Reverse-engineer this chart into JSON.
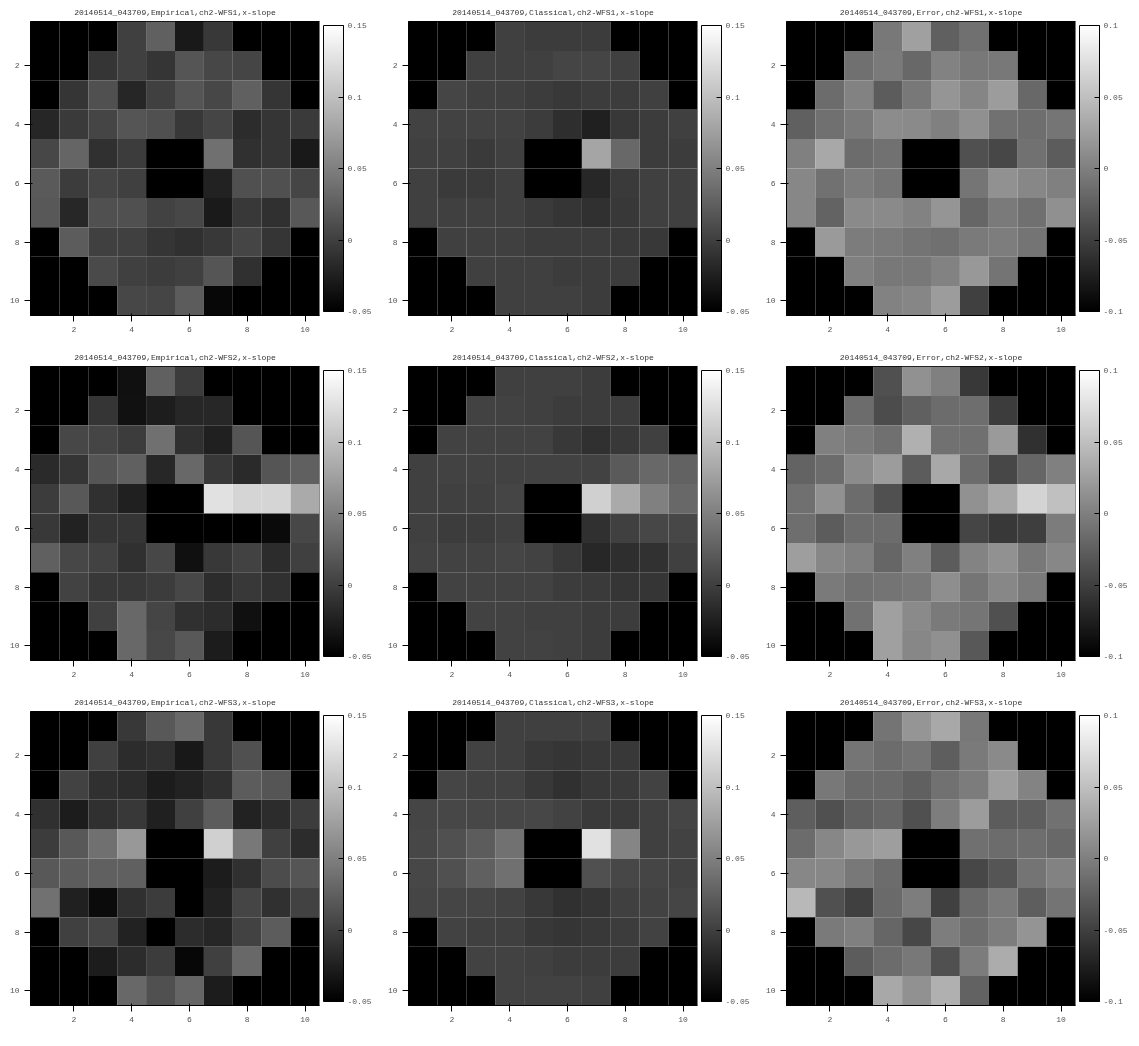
{
  "chart_data": [
    {
      "type": "heatmap",
      "title": "20140514_043709,Empirical,ch2-WFS1,x-slope",
      "categories": [
        null,
        "2",
        null,
        "4",
        null,
        "6",
        null,
        "8",
        null,
        "10"
      ],
      "y_categories": [
        null,
        "2",
        null,
        "4",
        null,
        "6",
        null,
        "8",
        null,
        "10"
      ],
      "clim": [
        -0.05,
        0.15
      ],
      "cticks": [
        -0.05,
        0,
        0.05,
        0.1,
        0.15
      ],
      "cells": [
        [
          null,
          null,
          null,
          0,
          0.025,
          -0.03,
          -0.006,
          null,
          null,
          null
        ],
        [
          null,
          null,
          -0.008,
          0,
          -0.008,
          0.017,
          0.006,
          0.004,
          null,
          null
        ],
        [
          null,
          -0.008,
          0.013,
          -0.02,
          0,
          0.017,
          0.006,
          0.025,
          -0.008,
          null
        ],
        [
          -0.02,
          -0.004,
          0.004,
          0.017,
          0.013,
          -0.006,
          0.004,
          -0.015,
          -0.008,
          -0.004
        ],
        [
          0.006,
          0.029,
          -0.012,
          -0.003,
          null,
          null,
          0.038,
          -0.012,
          -0.008,
          -0.03
        ],
        [
          0.021,
          -0.003,
          0.004,
          0,
          null,
          null,
          -0.023,
          0.013,
          0.013,
          0.004
        ],
        [
          0.019,
          -0.019,
          0.013,
          0.013,
          0.002,
          0.006,
          -0.029,
          -0.006,
          -0.012,
          0.019
        ],
        [
          null,
          0.022,
          0,
          0,
          -0.008,
          -0.012,
          -0.006,
          0.004,
          -0.008,
          null
        ],
        [
          null,
          null,
          0.008,
          0,
          -0.003,
          0,
          0.017,
          -0.012,
          null,
          null
        ],
        [
          null,
          null,
          null,
          0.006,
          0.004,
          0.022,
          -0.044,
          null,
          null,
          null
        ]
      ]
    },
    {
      "type": "heatmap",
      "title": "20140514_043709,Classical,ch2-WFS1,x-slope",
      "categories": [
        null,
        "2",
        null,
        "4",
        null,
        "6",
        null,
        "8",
        null,
        "10"
      ],
      "y_categories": [
        null,
        "2",
        null,
        "4",
        null,
        "6",
        null,
        "8",
        null,
        "10"
      ],
      "clim": [
        -0.05,
        0.15
      ],
      "cticks": [
        -0.05,
        0,
        0.05,
        0.1,
        0.15
      ],
      "cells": [
        [
          null,
          null,
          null,
          0,
          -0.003,
          -0.003,
          -0.003,
          null,
          null,
          null
        ],
        [
          null,
          null,
          0,
          0,
          0,
          0.004,
          0.004,
          0,
          null,
          null
        ],
        [
          null,
          0.004,
          0,
          0,
          -0.003,
          -0.006,
          -0.003,
          -0.003,
          0,
          null
        ],
        [
          0.002,
          0.002,
          0.002,
          0.002,
          -0.003,
          -0.014,
          -0.025,
          -0.006,
          -0.003,
          0
        ],
        [
          0,
          0,
          -0.004,
          0,
          null,
          null,
          0.079,
          0.032,
          -0.003,
          -0.003
        ],
        [
          0,
          -0.004,
          -0.004,
          0,
          null,
          null,
          -0.019,
          -0.004,
          0,
          0
        ],
        [
          0,
          0,
          0,
          0,
          -0.004,
          -0.008,
          -0.012,
          -0.006,
          0,
          0
        ],
        [
          null,
          0,
          0,
          0,
          -0.003,
          -0.003,
          -0.003,
          -0.004,
          -0.006,
          null
        ],
        [
          null,
          null,
          0,
          0,
          0,
          -0.003,
          -0.003,
          -0.003,
          null,
          null
        ],
        [
          null,
          null,
          null,
          0,
          0,
          0,
          -0.003,
          null,
          null,
          null
        ]
      ]
    },
    {
      "type": "heatmap",
      "title": "20140514_043709,Error,ch2-WFS1,x-slope",
      "categories": [
        null,
        "2",
        null,
        "4",
        null,
        "6",
        null,
        "8",
        null,
        "10"
      ],
      "y_categories": [
        null,
        "2",
        null,
        "4",
        null,
        "6",
        null,
        "8",
        null,
        "10"
      ],
      "clim": [
        -0.1,
        0.1
      ],
      "cticks": [
        -0.1,
        -0.05,
        0,
        0.05,
        0.1
      ],
      "cells": [
        [
          null,
          null,
          null,
          -0.006,
          0.025,
          -0.025,
          -0.012,
          null,
          null,
          null
        ],
        [
          null,
          null,
          -0.012,
          -0.004,
          -0.018,
          0.002,
          -0.006,
          -0.006,
          null,
          null
        ],
        [
          null,
          -0.015,
          0.002,
          -0.028,
          -0.006,
          0.017,
          0.004,
          0.022,
          -0.018,
          null
        ],
        [
          -0.025,
          -0.012,
          -0.004,
          0.01,
          0.008,
          0,
          0.013,
          -0.011,
          -0.014,
          -0.008
        ],
        [
          0,
          0.032,
          -0.015,
          -0.011,
          null,
          null,
          -0.037,
          -0.044,
          -0.011,
          -0.028
        ],
        [
          0.006,
          -0.011,
          -0.003,
          -0.008,
          null,
          null,
          -0.008,
          0.014,
          0.006,
          0
        ],
        [
          0.006,
          -0.022,
          0.008,
          0.008,
          0.002,
          0.017,
          -0.02,
          -0.004,
          -0.012,
          0.013
        ],
        [
          null,
          0.021,
          -0.003,
          -0.004,
          -0.009,
          -0.012,
          -0.004,
          -0.002,
          -0.009,
          null
        ],
        [
          null,
          null,
          0,
          -0.006,
          -0.006,
          0.002,
          0.019,
          -0.009,
          null,
          null
        ],
        [
          null,
          null,
          null,
          0.002,
          0.005,
          0.022,
          -0.05,
          null,
          null,
          null
        ]
      ]
    },
    {
      "type": "heatmap",
      "title": "20140514_043709,Empirical,ch2-WFS2,x-slope",
      "categories": [
        null,
        "2",
        null,
        "4",
        null,
        "6",
        null,
        "8",
        null,
        "10"
      ],
      "y_categories": [
        null,
        "2",
        null,
        "4",
        null,
        "6",
        null,
        "8",
        null,
        "10"
      ],
      "clim": [
        -0.05,
        0.15
      ],
      "cticks": [
        -0.05,
        0,
        0.05,
        0.1,
        0.15
      ],
      "cells": [
        [
          null,
          null,
          null,
          -0.037,
          0.025,
          -0.003,
          -0.05,
          null,
          null,
          null
        ],
        [
          null,
          null,
          -0.008,
          -0.036,
          -0.027,
          -0.019,
          -0.019,
          -0.05,
          null,
          null
        ],
        [
          null,
          0.006,
          0.004,
          -0.003,
          0.038,
          -0.012,
          -0.025,
          0.017,
          -0.05,
          null
        ],
        [
          -0.017,
          -0.008,
          0.017,
          0.025,
          -0.019,
          0.032,
          -0.006,
          -0.017,
          0.017,
          0.025
        ],
        [
          -0.003,
          0.019,
          -0.012,
          -0.025,
          null,
          null,
          0.126,
          0.117,
          0.117,
          0.083
        ],
        [
          -0.006,
          -0.023,
          -0.008,
          -0.008,
          null,
          null,
          -0.05,
          -0.05,
          -0.042,
          0.006
        ],
        [
          0.025,
          0.006,
          0.002,
          -0.012,
          0.006,
          -0.037,
          -0.006,
          0.002,
          -0.015,
          0
        ],
        [
          null,
          0.002,
          -0.006,
          -0.006,
          -0.003,
          0.006,
          -0.015,
          -0.006,
          -0.012,
          null
        ],
        [
          null,
          null,
          0,
          0.032,
          0.004,
          -0.012,
          -0.015,
          -0.037,
          null,
          null
        ],
        [
          null,
          null,
          null,
          0.032,
          0.006,
          0.019,
          -0.028,
          null,
          null,
          null
        ]
      ]
    },
    {
      "type": "heatmap",
      "title": "20140514_043709,Classical,ch2-WFS2,x-slope",
      "categories": [
        null,
        "2",
        null,
        "4",
        null,
        "6",
        null,
        "8",
        null,
        "10"
      ],
      "y_categories": [
        null,
        "2",
        null,
        "4",
        null,
        "6",
        null,
        "8",
        null,
        "10"
      ],
      "clim": [
        -0.05,
        0.15
      ],
      "cticks": [
        -0.05,
        0,
        0.05,
        0.1,
        0.15
      ],
      "cells": [
        [
          null,
          null,
          null,
          0,
          0,
          0,
          -0.003,
          null,
          null,
          null
        ],
        [
          null,
          null,
          0.002,
          0.002,
          0,
          -0.003,
          -0.003,
          -0.003,
          null,
          null
        ],
        [
          null,
          0.002,
          0.002,
          0.002,
          0.002,
          -0.006,
          -0.012,
          -0.006,
          0,
          null
        ],
        [
          0,
          0.002,
          0.002,
          0.002,
          0.002,
          0.002,
          0.002,
          0.021,
          0.032,
          0.027
        ],
        [
          0,
          0,
          0,
          0.004,
          null,
          null,
          0.113,
          0.083,
          0.05,
          0.032
        ],
        [
          0,
          -0.003,
          -0.003,
          0,
          null,
          null,
          -0.012,
          0,
          0.006,
          0.006
        ],
        [
          0.002,
          0.002,
          0.002,
          0.004,
          0.002,
          -0.006,
          -0.019,
          -0.014,
          -0.011,
          0
        ],
        [
          null,
          0.002,
          0.002,
          0.002,
          0.002,
          -0.003,
          -0.004,
          -0.008,
          -0.008,
          null
        ],
        [
          null,
          null,
          0.002,
          0.002,
          0,
          0,
          -0.003,
          -0.003,
          null,
          null
        ],
        [
          null,
          null,
          null,
          0.002,
          0.002,
          0,
          -0.003,
          null,
          null,
          null
        ]
      ]
    },
    {
      "type": "heatmap",
      "title": "20140514_043709,Error,ch2-WFS2,x-slope",
      "categories": [
        null,
        "2",
        null,
        "4",
        null,
        "6",
        null,
        "8",
        null,
        "10"
      ],
      "y_categories": [
        null,
        "2",
        null,
        "4",
        null,
        "6",
        null,
        "8",
        null,
        "10"
      ],
      "clim": [
        -0.1,
        0.1
      ],
      "cticks": [
        -0.1,
        -0.05,
        0,
        0.05,
        0.1
      ],
      "cells": [
        [
          null,
          null,
          null,
          -0.037,
          0.014,
          0,
          -0.056,
          null,
          null,
          null
        ],
        [
          null,
          null,
          -0.015,
          -0.04,
          -0.025,
          -0.015,
          -0.014,
          -0.053,
          null,
          null
        ],
        [
          null,
          0,
          -0.004,
          -0.012,
          0.038,
          -0.011,
          -0.012,
          0.021,
          -0.062,
          null
        ],
        [
          -0.022,
          -0.015,
          0.009,
          0.022,
          -0.028,
          0.032,
          -0.015,
          -0.044,
          -0.02,
          0
        ],
        [
          -0.012,
          0.014,
          -0.015,
          -0.037,
          null,
          null,
          0.014,
          0.032,
          0.065,
          0.05
        ],
        [
          -0.014,
          -0.028,
          -0.015,
          -0.015,
          null,
          null,
          -0.046,
          -0.056,
          -0.051,
          -0.003
        ],
        [
          0.024,
          0.006,
          0,
          -0.02,
          0,
          -0.028,
          0.003,
          0.014,
          -0.006,
          0.006
        ],
        [
          null,
          -0.004,
          -0.011,
          -0.009,
          -0.006,
          0.011,
          -0.008,
          0.006,
          -0.004,
          null
        ],
        [
          null,
          null,
          -0.011,
          0.025,
          0.008,
          -0.004,
          -0.008,
          -0.037,
          null,
          null
        ],
        [
          null,
          null,
          null,
          0.025,
          0.006,
          0.013,
          -0.031,
          null,
          null,
          null
        ]
      ]
    },
    {
      "type": "heatmap",
      "title": "20140514_043709,Empirical,ch2-WFS3,x-slope",
      "categories": [
        null,
        "2",
        null,
        "4",
        null,
        "6",
        null,
        "8",
        null,
        "10"
      ],
      "y_categories": [
        null,
        "2",
        null,
        "4",
        null,
        "6",
        null,
        "8",
        null,
        "10"
      ],
      "clim": [
        -0.05,
        0.15
      ],
      "cticks": [
        -0.05,
        0,
        0.05,
        0.1,
        0.15
      ],
      "cells": [
        [
          null,
          null,
          null,
          -0.006,
          0.019,
          0.032,
          -0.006,
          null,
          null,
          null
        ],
        [
          null,
          null,
          0,
          -0.015,
          -0.012,
          -0.031,
          -0.006,
          0.013,
          null,
          null
        ],
        [
          null,
          0.002,
          -0.012,
          -0.015,
          -0.028,
          -0.023,
          -0.012,
          0.022,
          0.017,
          null
        ],
        [
          -0.012,
          -0.028,
          -0.012,
          -0.006,
          -0.025,
          0,
          0.022,
          -0.023,
          -0.015,
          -0.003
        ],
        [
          -0.003,
          0.019,
          0.038,
          0.069,
          null,
          null,
          0.113,
          0.044,
          0,
          -0.015
        ],
        [
          0.019,
          0.022,
          0.025,
          0.025,
          null,
          null,
          -0.028,
          -0.012,
          0.01,
          0.017
        ],
        [
          0.039,
          -0.025,
          -0.041,
          -0.012,
          -0.003,
          -0.05,
          -0.023,
          0.004,
          -0.012,
          0.002
        ],
        [
          null,
          0,
          0.004,
          -0.023,
          -0.05,
          -0.015,
          -0.02,
          0.002,
          0.022,
          null
        ],
        [
          null,
          null,
          -0.028,
          -0.015,
          -0.003,
          -0.044,
          0,
          0.032,
          null,
          null
        ],
        [
          null,
          null,
          null,
          0.032,
          0.013,
          0.029,
          -0.028,
          null,
          null,
          null
        ]
      ]
    },
    {
      "type": "heatmap",
      "title": "20140514_043709,Classical,ch2-WFS3,x-slope",
      "categories": [
        null,
        "2",
        null,
        "4",
        null,
        "6",
        null,
        "8",
        null,
        "10"
      ],
      "y_categories": [
        null,
        "2",
        null,
        "4",
        null,
        "6",
        null,
        "8",
        null,
        "10"
      ],
      "clim": [
        -0.05,
        0.15
      ],
      "cticks": [
        -0.05,
        0,
        0.05,
        0.1,
        0.15
      ],
      "cells": [
        [
          null,
          null,
          null,
          0,
          0,
          0,
          0,
          null,
          null,
          null
        ],
        [
          null,
          null,
          0.002,
          0,
          -0.006,
          -0.008,
          -0.006,
          -0.006,
          null,
          null
        ],
        [
          null,
          0.004,
          0.002,
          0.002,
          -0.006,
          -0.012,
          -0.006,
          -0.004,
          0.002,
          null
        ],
        [
          0.004,
          0.006,
          0.006,
          0.006,
          0.006,
          0.002,
          -0.004,
          -0.004,
          0,
          0.004
        ],
        [
          0.006,
          0.013,
          0.022,
          0.039,
          null,
          null,
          0.126,
          0.054,
          0,
          0.002
        ],
        [
          0.006,
          0.013,
          0.025,
          0.038,
          null,
          null,
          0.013,
          0.006,
          0.004,
          0.002
        ],
        [
          0.004,
          0.004,
          0.004,
          0.002,
          -0.006,
          -0.012,
          -0.008,
          0,
          0.002,
          0.004
        ],
        [
          null,
          0.002,
          0,
          0,
          -0.006,
          -0.008,
          -0.006,
          -0.003,
          0.002,
          null
        ],
        [
          null,
          null,
          0.002,
          0.002,
          0,
          -0.003,
          -0.003,
          -0.003,
          null,
          null
        ],
        [
          null,
          null,
          null,
          0.002,
          0.002,
          0.002,
          0,
          null,
          null,
          null
        ]
      ]
    },
    {
      "type": "heatmap",
      "title": "20140514_043709,Error,ch2-WFS3,x-slope",
      "categories": [
        null,
        "2",
        null,
        "4",
        null,
        "6",
        null,
        "8",
        null,
        "10"
      ],
      "y_categories": [
        null,
        "2",
        null,
        "4",
        null,
        "6",
        null,
        "8",
        null,
        "10"
      ],
      "clim": [
        -0.1,
        0.1
      ],
      "cticks": [
        -0.1,
        -0.05,
        0,
        0.05,
        0.1
      ],
      "cells": [
        [
          null,
          null,
          null,
          -0.009,
          0.017,
          0.032,
          -0.006,
          null,
          null,
          null
        ],
        [
          null,
          null,
          -0.008,
          -0.015,
          -0.009,
          -0.026,
          -0.004,
          0.008,
          null,
          null
        ],
        [
          null,
          -0.006,
          -0.017,
          -0.017,
          -0.025,
          -0.011,
          -0.003,
          0.024,
          0.003,
          null
        ],
        [
          -0.026,
          -0.037,
          -0.025,
          -0.02,
          -0.037,
          -0.002,
          0.022,
          -0.028,
          -0.026,
          -0.011
        ],
        [
          -0.015,
          0.006,
          0.019,
          0.024,
          null,
          null,
          -0.012,
          -0.015,
          -0.014,
          -0.018
        ],
        [
          0.006,
          0.006,
          -0.006,
          -0.015,
          null,
          null,
          -0.044,
          -0.033,
          -0.009,
          0.002
        ],
        [
          0.044,
          -0.037,
          -0.05,
          -0.017,
          -0.002,
          -0.05,
          -0.017,
          -0.004,
          -0.026,
          -0.009
        ],
        [
          null,
          -0.004,
          0,
          -0.02,
          -0.044,
          -0.002,
          -0.014,
          -0.002,
          0.016,
          null
        ],
        [
          null,
          null,
          -0.028,
          -0.015,
          -0.006,
          -0.037,
          -0.003,
          0.035,
          null,
          null
        ],
        [
          null,
          null,
          null,
          0.032,
          0.014,
          0.038,
          -0.023,
          null,
          null,
          null
        ]
      ]
    }
  ]
}
